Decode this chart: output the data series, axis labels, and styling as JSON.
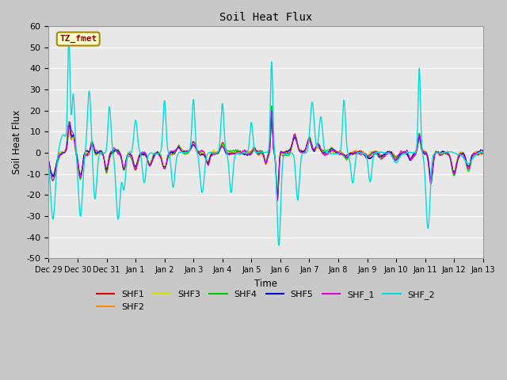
{
  "title": "Soil Heat Flux",
  "xlabel": "Time",
  "ylabel": "Soil Heat Flux",
  "ylim": [
    -50,
    60
  ],
  "yticks": [
    -50,
    -40,
    -30,
    -20,
    -10,
    0,
    10,
    20,
    30,
    40,
    50,
    60
  ],
  "fig_bg": "#c8c8c8",
  "axes_bg": "#e8e8e8",
  "series_colors": {
    "SHF1": "#dd0000",
    "SHF2": "#ff8800",
    "SHF3": "#dddd00",
    "SHF4": "#00cc00",
    "SHF5": "#0000cc",
    "SHF_1": "#dd00dd",
    "SHF_2": "#00dddd"
  },
  "legend_box_color": "#ffffcc",
  "legend_box_edge": "#aa8800",
  "tz_fmet_text_color": "#880000",
  "grid_color": "#ffffff",
  "num_points": 1440,
  "seed": 123
}
